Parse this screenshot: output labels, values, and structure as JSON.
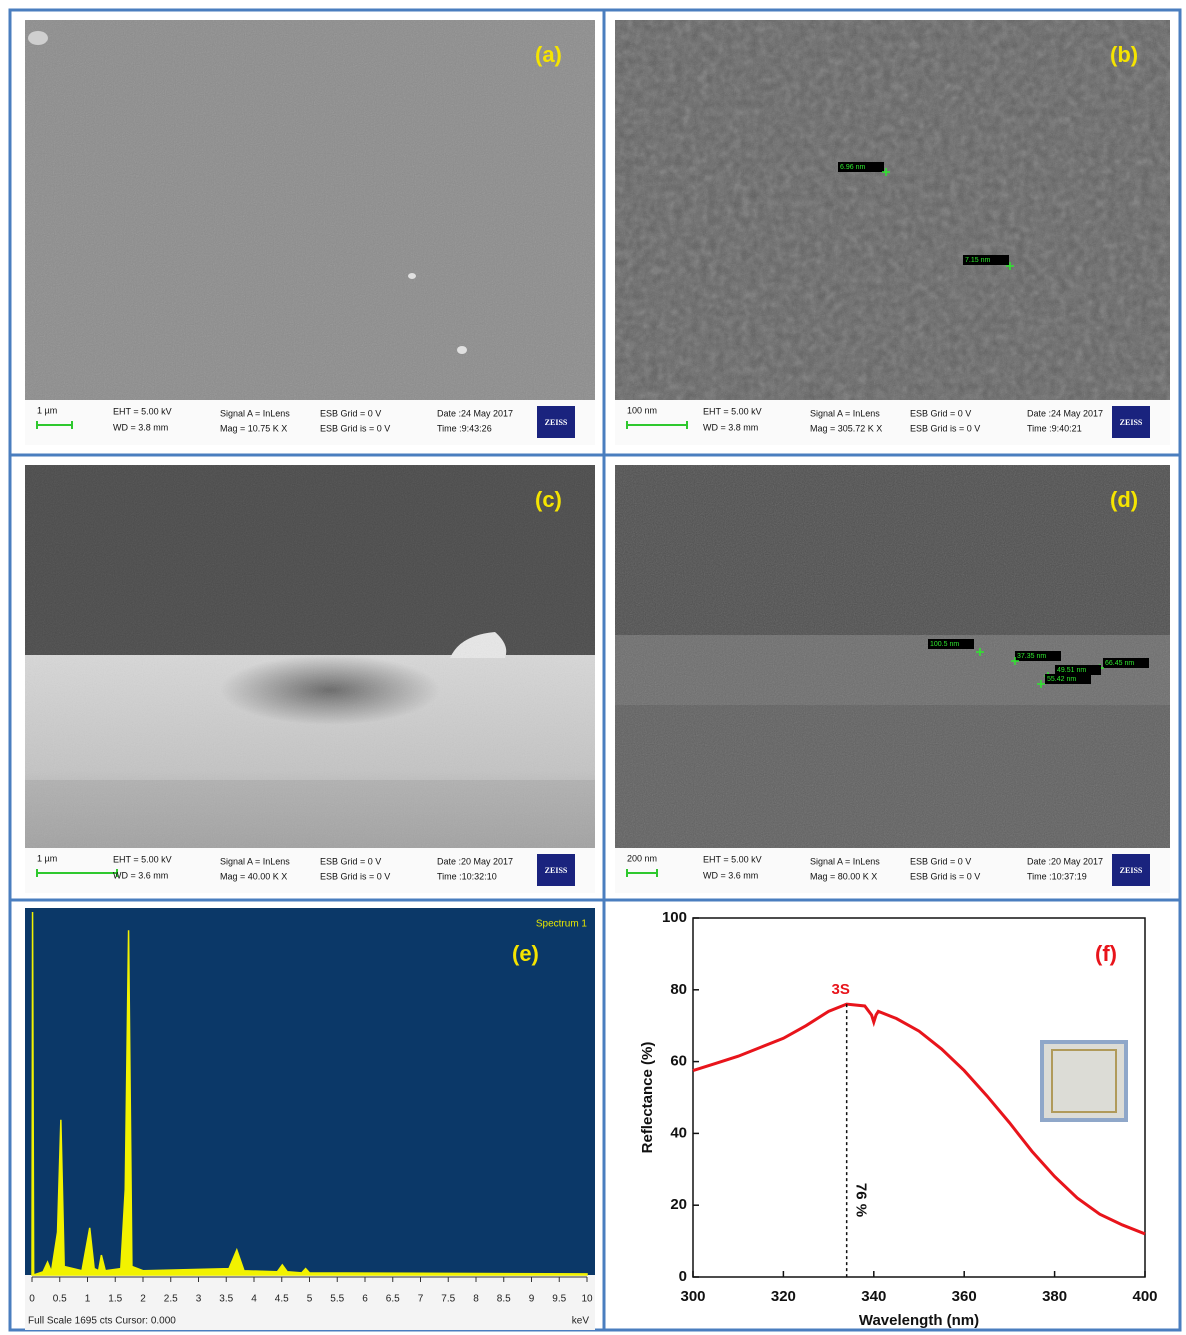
{
  "panels": [
    {
      "label": "(a)",
      "scale_bar": "1 µm",
      "eht": "EHT = 5.00 kV",
      "wd": "WD = 3.8 mm",
      "signal": "Signal A = InLens",
      "mag": "Mag = 10.75 K X",
      "esb_grid": "ESB Grid = 0 V",
      "esb_grid_is": "ESB Grid is = 0 V",
      "date": "Date :24 May 2017",
      "time": "Time :9:43:26",
      "brand": "ZEISS",
      "measurements": []
    },
    {
      "label": "(b)",
      "scale_bar": "100 nm",
      "eht": "EHT = 5.00 kV",
      "wd": "WD = 3.8 mm",
      "signal": "Signal A = InLens",
      "mag": "Mag = 305.72 K X",
      "esb_grid": "ESB Grid = 0 V",
      "esb_grid_is": "ESB Grid is = 0 V",
      "date": "Date :24 May 2017",
      "time": "Time :9:40:21",
      "brand": "ZEISS",
      "measurements": [
        "6.96 nm",
        "7.15 nm"
      ]
    },
    {
      "label": "(c)",
      "scale_bar": "1 µm",
      "eht": "EHT = 5.00 kV",
      "wd": "WD = 3.6 mm",
      "signal": "Signal A = InLens",
      "mag": "Mag = 40.00 K X",
      "esb_grid": "ESB Grid = 0 V",
      "esb_grid_is": "ESB Grid is = 0 V",
      "date": "Date :20 May 2017",
      "time": "Time :10:32:10",
      "brand": "ZEISS",
      "measurements": []
    },
    {
      "label": "(d)",
      "scale_bar": "200 nm",
      "eht": "EHT = 5.00 kV",
      "wd": "WD = 3.6 mm",
      "signal": "Signal A = InLens",
      "mag": "Mag = 80.00 K X",
      "esb_grid": "ESB Grid = 0 V",
      "esb_grid_is": "ESB Grid is = 0 V",
      "date": "Date :20 May 2017",
      "time": "Time :10:37:19",
      "brand": "ZEISS",
      "measurements": [
        "100.5 nm",
        "37.35 nm",
        "66.45 nm",
        "49.51 nm",
        "55.42 nm"
      ]
    }
  ],
  "chart_data": [
    {
      "type": "spectrum",
      "label": "(e)",
      "title": "Spectrum 1",
      "footer": "Full Scale 1695 cts Cursor: 0.000",
      "x_label": "keV",
      "color": "#f2f200",
      "background": "#0b3868",
      "x": [
        0,
        0.01,
        0.03,
        0.2,
        0.28,
        0.35,
        0.46,
        0.52,
        0.58,
        0.9,
        1.04,
        1.12,
        1.2,
        1.25,
        1.32,
        1.6,
        1.68,
        1.74,
        1.8,
        2.0,
        3.55,
        3.69,
        3.82,
        4.42,
        4.51,
        4.6,
        4.86,
        4.93,
        5.0,
        7.0,
        10.0
      ],
      "values": [
        0,
        1695,
        0,
        15,
        60,
        15,
        200,
        725,
        40,
        20,
        220,
        30,
        20,
        93,
        20,
        30,
        400,
        1610,
        40,
        20,
        30,
        117,
        20,
        15,
        47,
        15,
        10,
        30,
        10,
        8,
        5
      ],
      "xlim": [
        0,
        10
      ],
      "ylim": [
        0,
        1695
      ],
      "xticks": [
        0,
        0.5,
        1,
        1.5,
        2,
        2.5,
        3,
        3.5,
        4,
        4.5,
        5,
        5.5,
        6,
        6.5,
        7,
        7.5,
        8,
        8.5,
        9,
        9.5,
        10
      ]
    },
    {
      "type": "line",
      "label": "(f)",
      "x_label": "Wavelength (nm)",
      "y_label": "Reflectance (%)",
      "x": [
        300,
        305,
        310,
        315,
        320,
        325,
        330,
        334,
        338,
        339.5,
        340,
        340.5,
        341,
        345,
        350,
        355,
        360,
        365,
        370,
        375,
        380,
        385,
        390,
        395,
        400
      ],
      "series": [
        {
          "name": "3S",
          "color": "#e8141b",
          "values": [
            57.5,
            59.5,
            61.5,
            64,
            66.5,
            70,
            74,
            76,
            75.5,
            73,
            71,
            73,
            74,
            72,
            68.5,
            63.5,
            57.5,
            50.5,
            43,
            35,
            28,
            22,
            17.5,
            14.5,
            12
          ]
        }
      ],
      "annotation": {
        "x": 334,
        "y": 76,
        "label": "76 %"
      },
      "xlim": [
        300,
        400
      ],
      "ylim": [
        0,
        100
      ],
      "xticks": [
        300,
        320,
        340,
        360,
        380,
        400
      ],
      "yticks": [
        0,
        20,
        40,
        60,
        80,
        100
      ]
    }
  ]
}
